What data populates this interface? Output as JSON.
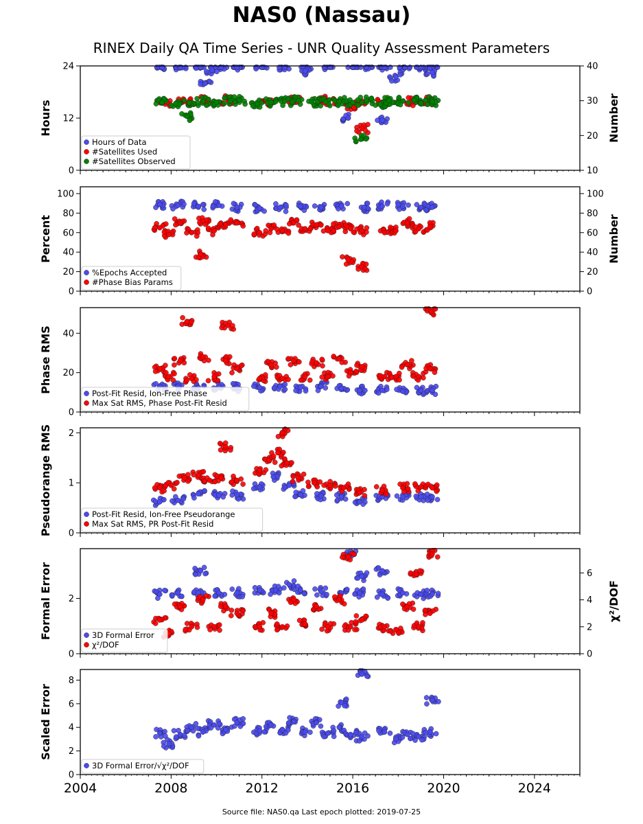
{
  "page": {
    "title": "NAS0 (Nassau)",
    "subtitle": "RINEX Daily QA Time Series - UNR Quality Assessment Parameters",
    "footer": "Source file: NAS0.qa Last epoch plotted: 2019-07-25"
  },
  "chart_data": [
    {
      "type": "scatter",
      "ylabel": "Hours",
      "ylabel_right": "Number",
      "xlim": [
        2004,
        2026
      ],
      "ylim": [
        0,
        24
      ],
      "ylim_right": [
        10,
        40
      ],
      "yticks": [
        "0",
        "12",
        "24"
      ],
      "yticks_right": [
        "10",
        "20",
        "30",
        "40"
      ],
      "grid": false,
      "legend": "lower-left",
      "series": [
        {
          "name": "Hours of Data",
          "color": "#4a4af0",
          "axis": "left",
          "x": [
            2007.6,
            2008.4,
            2009.3,
            2010.2,
            2010.9,
            2012.0,
            2013.0,
            2014.0,
            2015.0,
            2016.0,
            2016.6,
            2017.4,
            2018.3,
            2019.0,
            2019.5,
            2009.5,
            2009.8,
            2013.9,
            2017.9,
            2019.5,
            2015.8,
            2017.3
          ],
          "y": [
            24,
            24,
            24,
            24,
            24,
            24,
            24,
            24,
            24,
            24,
            24,
            24,
            24,
            24,
            24,
            20,
            23,
            22.8,
            21.5,
            22.5,
            12,
            11.5
          ]
        },
        {
          "name": "#Satellites Used",
          "color": "#ff0000",
          "axis": "right",
          "x": [
            2007.8,
            2008.6,
            2009.6,
            2010.5,
            2012.2,
            2013.4,
            2014.6,
            2015.4,
            2016.0,
            2016.3,
            2016.4,
            2017.3,
            2018.6,
            2019.3
          ],
          "y": [
            29.5,
            29.8,
            30,
            30.2,
            29.8,
            30,
            30.1,
            29.9,
            28.5,
            29,
            22,
            29.5,
            29.8,
            30
          ]
        },
        {
          "name": "#Satellites Observed",
          "color": "#008000",
          "axis": "right",
          "x": [
            2007.6,
            2008.2,
            2008.8,
            2009.4,
            2010.0,
            2010.6,
            2011.0,
            2011.8,
            2012.4,
            2013.0,
            2013.6,
            2014.2,
            2014.8,
            2015.4,
            2016.0,
            2016.6,
            2017.2,
            2017.6,
            2018.2,
            2018.7,
            2019.2,
            2019.5,
            2008.7,
            2016.35
          ],
          "y": [
            29.5,
            29.2,
            29.4,
            29.8,
            29.6,
            29.9,
            30.2,
            29.1,
            29.5,
            29.8,
            30.0,
            29.6,
            29.7,
            29.8,
            29.5,
            30.1,
            29.0,
            30.1,
            29.9,
            30.2,
            30.1,
            29.8,
            25.5,
            18.9
          ]
        }
      ]
    },
    {
      "type": "scatter",
      "ylabel": "Percent",
      "ylabel_right": "Number",
      "xlim": [
        2004,
        2026
      ],
      "ylim": [
        0,
        107
      ],
      "ylim_right": [
        0,
        107
      ],
      "yticks": [
        "0",
        "20",
        "40",
        "60",
        "80",
        "100"
      ],
      "yticks_right": [
        "0",
        "20",
        "40",
        "60",
        "80",
        "100"
      ],
      "grid": false,
      "legend": "lower-left",
      "series": [
        {
          "name": "%Epochs Accepted",
          "color": "#4a4af0",
          "axis": "left",
          "x": [
            2007.5,
            2008.3,
            2009.2,
            2010.1,
            2010.9,
            2011.9,
            2012.8,
            2013.7,
            2014.6,
            2015.5,
            2016.5,
            2017.3,
            2018.2,
            2019.0,
            2019.5
          ],
          "y": [
            89,
            88,
            87,
            88,
            86,
            85,
            86,
            87,
            86,
            87,
            86,
            87,
            87,
            86,
            86
          ]
        },
        {
          "name": "#Phase Bias Params",
          "color": "#ff0000",
          "axis": "right",
          "x": [
            2007.5,
            2007.9,
            2008.4,
            2008.9,
            2009.4,
            2009.9,
            2010.4,
            2010.9,
            2011.9,
            2012.4,
            2012.9,
            2013.4,
            2013.9,
            2014.4,
            2014.9,
            2015.4,
            2015.9,
            2016.4,
            2017.4,
            2017.9,
            2018.4,
            2018.9,
            2019.4,
            2009.3,
            2016.4,
            2015.8
          ],
          "y": [
            65,
            58,
            70,
            60,
            72,
            62,
            68,
            70,
            60,
            64,
            62,
            70,
            64,
            68,
            62,
            66,
            64,
            62,
            60,
            62,
            70,
            64,
            66,
            38,
            25,
            32
          ]
        }
      ]
    },
    {
      "type": "scatter",
      "ylabel": "Phase RMS",
      "xlim": [
        2004,
        2026
      ],
      "ylim": [
        0,
        53
      ],
      "yticks": [
        "0",
        "20",
        "40"
      ],
      "grid": false,
      "legend": "lower-left",
      "series": [
        {
          "name": "Post-Fit Resid, Ion-Free Phase",
          "color": "#4a4af0",
          "x": [
            2007.5,
            2008.3,
            2009.2,
            2010.1,
            2010.9,
            2011.9,
            2012.8,
            2013.7,
            2014.6,
            2015.5,
            2016.3,
            2017.3,
            2018.2,
            2019.0,
            2019.5
          ],
          "y": [
            13,
            13,
            12.5,
            13,
            12.5,
            12.5,
            13,
            12.5,
            13,
            12,
            11,
            11,
            10.5,
            11,
            11
          ]
        },
        {
          "name": "Max Sat RMS, Phase Post-Fit Resid",
          "color": "#ff0000",
          "x": [
            2007.5,
            2007.9,
            2008.4,
            2008.9,
            2009.4,
            2009.9,
            2010.4,
            2010.9,
            2011.9,
            2012.4,
            2012.9,
            2013.4,
            2013.9,
            2014.4,
            2014.9,
            2015.4,
            2015.9,
            2016.4,
            2017.4,
            2017.9,
            2018.4,
            2018.9,
            2019.4,
            2019.45,
            2008.7,
            2010.5
          ],
          "y": [
            22,
            18,
            26,
            17,
            28,
            18,
            26,
            22,
            17,
            24,
            17,
            26,
            18,
            25,
            18,
            27,
            20,
            23,
            18,
            18,
            24,
            18,
            22,
            51,
            46,
            44
          ]
        }
      ]
    },
    {
      "type": "scatter",
      "ylabel": "Pseudorange RMS",
      "xlim": [
        2004,
        2026
      ],
      "ylim": [
        0,
        2.1
      ],
      "yticks": [
        "0",
        "1",
        "2"
      ],
      "grid": false,
      "legend": "lower-left",
      "series": [
        {
          "name": "Post-Fit Resid, Ion-Free Pseudorange",
          "color": "#4a4af0",
          "x": [
            2007.5,
            2008.3,
            2009.2,
            2010.1,
            2010.9,
            2011.9,
            2012.5,
            2013.2,
            2013.7,
            2014.6,
            2015.5,
            2016.3,
            2017.3,
            2018.2,
            2019.0,
            2019.5
          ],
          "y": [
            0.62,
            0.65,
            0.78,
            0.75,
            0.76,
            0.92,
            1.12,
            0.95,
            0.76,
            0.74,
            0.72,
            0.62,
            0.72,
            0.72,
            0.72,
            0.72
          ]
        },
        {
          "name": "Max Sat RMS, PR Post-Fit Resid",
          "color": "#ff0000",
          "x": [
            2007.5,
            2008.0,
            2008.6,
            2009.2,
            2009.7,
            2010.2,
            2010.9,
            2011.9,
            2012.3,
            2012.7,
            2013.1,
            2013.6,
            2014.3,
            2015.0,
            2015.6,
            2016.3,
            2017.3,
            2018.2,
            2019.0,
            2019.5,
            2012.9,
            2010.4
          ],
          "y": [
            0.9,
            0.95,
            1.1,
            1.15,
            1.05,
            1.1,
            1.05,
            1.25,
            1.45,
            1.6,
            1.4,
            1.1,
            1.0,
            0.95,
            0.9,
            0.8,
            0.85,
            0.9,
            0.92,
            0.9,
            2.0,
            1.72
          ]
        }
      ]
    },
    {
      "type": "scatter",
      "ylabel": "Formal Error",
      "ylabel_right": "χ²/DOF",
      "xlim": [
        2004,
        2026
      ],
      "ylim": [
        0,
        3.8
      ],
      "ylim_right": [
        0,
        7.8
      ],
      "yticks": [
        "0",
        "2"
      ],
      "yticks_right": [
        "0",
        "2",
        "4",
        "6"
      ],
      "grid": false,
      "legend": "lower-left",
      "series": [
        {
          "name": "3D Formal Error",
          "color": "#4a4af0",
          "axis": "left",
          "x": [
            2007.5,
            2008.3,
            2009.2,
            2010.1,
            2010.9,
            2011.9,
            2012.6,
            2013.2,
            2013.7,
            2014.6,
            2015.5,
            2016.3,
            2017.3,
            2018.2,
            2019.0,
            2019.5,
            2009.3,
            2015.9,
            2016.4,
            2017.3
          ],
          "y": [
            2.15,
            2.2,
            2.2,
            2.2,
            2.2,
            2.3,
            2.3,
            2.5,
            2.3,
            2.25,
            2.2,
            2.2,
            2.15,
            2.2,
            2.15,
            2.15,
            3.0,
            3.6,
            2.8,
            3.0
          ]
        },
        {
          "name": "χ²/DOF",
          "color": "#ff0000",
          "axis": "right",
          "x": [
            2007.5,
            2007.9,
            2008.4,
            2008.9,
            2009.4,
            2009.9,
            2010.4,
            2010.9,
            2011.9,
            2012.4,
            2012.9,
            2013.4,
            2013.9,
            2014.4,
            2014.9,
            2015.4,
            2015.9,
            2016.4,
            2017.4,
            2017.9,
            2018.4,
            2018.9,
            2019.4,
            2019.5,
            2015.8,
            2018.8
          ],
          "y": [
            2.5,
            1.5,
            3.5,
            2,
            4,
            2,
            3.5,
            3,
            2,
            3,
            2,
            4,
            2.2,
            3.5,
            2,
            4,
            2,
            2.5,
            2,
            1.8,
            3.5,
            2,
            3,
            7.4,
            7.2,
            5.9
          ]
        }
      ]
    },
    {
      "type": "scatter",
      "ylabel": "Scaled Error",
      "xlabel": "",
      "xlim": [
        2004,
        2026
      ],
      "ylim": [
        0,
        8.9
      ],
      "yticks": [
        "0",
        "2",
        "4",
        "6",
        "8"
      ],
      "xticks": [
        "2004",
        "2008",
        "2012",
        "2016",
        "2020",
        "2024"
      ],
      "grid": false,
      "legend": "lower-left",
      "series": [
        {
          "name": "3D Formal Error/√χ²/DOF",
          "color": "#4a4af0",
          "x": [
            2007.5,
            2007.9,
            2008.4,
            2008.9,
            2009.4,
            2009.9,
            2010.4,
            2010.9,
            2011.9,
            2012.4,
            2012.9,
            2013.4,
            2013.9,
            2014.4,
            2014.9,
            2015.4,
            2015.9,
            2016.4,
            2017.4,
            2017.9,
            2018.4,
            2018.9,
            2019.4,
            2019.5,
            2016.4,
            2015.5
          ],
          "y": [
            3.5,
            2.6,
            3.4,
            4.0,
            3.6,
            4.2,
            3.8,
            4.4,
            3.7,
            4.2,
            3.8,
            4.5,
            3.6,
            4.4,
            3.5,
            4.0,
            3.4,
            3.2,
            3.6,
            3.0,
            3.4,
            3.2,
            3.6,
            6.3,
            8.5,
            6.1
          ]
        }
      ]
    }
  ]
}
